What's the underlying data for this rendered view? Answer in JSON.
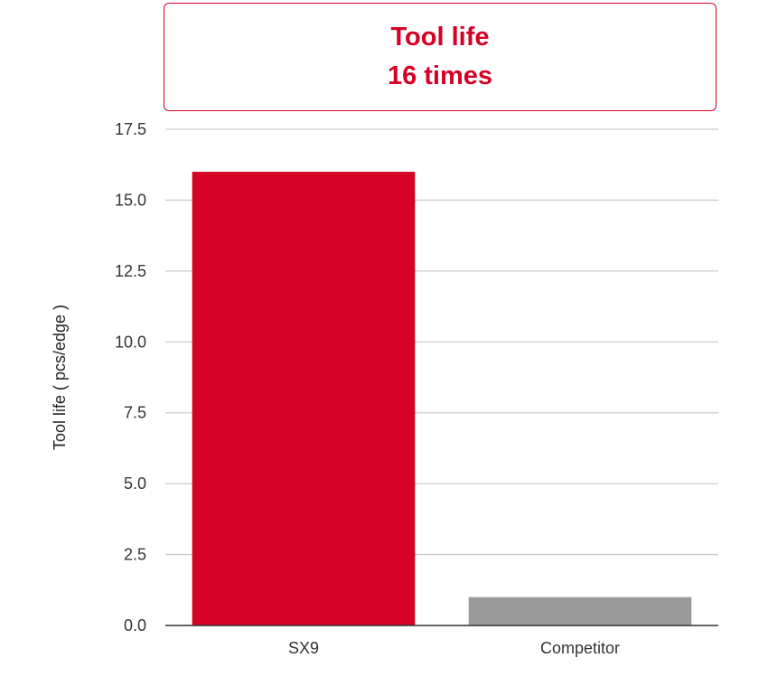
{
  "header": {
    "title_line1": "Tool life",
    "title_line2": "16 times"
  },
  "colors": {
    "accent": "#d50025",
    "competitor": "#9a9a9a",
    "grid": "#cccccc",
    "axis": "#333333"
  },
  "chart_data": {
    "type": "bar",
    "categories": [
      "SX9",
      "Competitor"
    ],
    "values": [
      16,
      1
    ],
    "bar_colors": [
      "#d50025",
      "#9a9a9a"
    ],
    "ylabel": "Tool life ( pcs/edge )",
    "xlabel": "",
    "ylim": [
      0,
      17.5
    ],
    "yticks": [
      "0.0",
      "2.5",
      "5.0",
      "7.5",
      "10.0",
      "12.5",
      "15.0",
      "17.5"
    ],
    "grid": true,
    "legend": "none"
  }
}
